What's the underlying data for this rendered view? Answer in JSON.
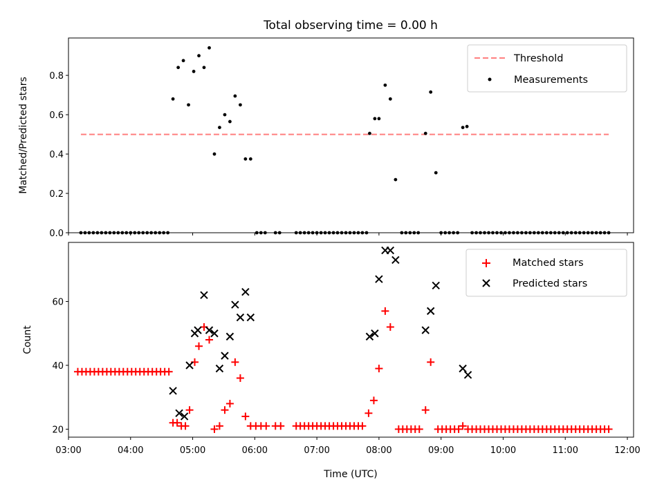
{
  "chart_data": [
    {
      "type": "scatter",
      "title": "Total observing time = 0.00 h",
      "xlabel": "",
      "ylabel": "Matched/Predicted stars",
      "xlim": [
        3.0,
        12.1
      ],
      "ylim": [
        0.0,
        0.99
      ],
      "yticks": [
        0.0,
        0.2,
        0.4,
        0.6,
        0.8
      ],
      "ytick_labels": [
        "0.0",
        "0.2",
        "0.4",
        "0.6",
        "0.8"
      ],
      "grid": false,
      "legend_position": "top-right",
      "threshold": {
        "name": "Threshold",
        "value": 0.5,
        "x_start": 3.2,
        "x_end": 11.7,
        "color": "#ff7f7f",
        "style": "dashed"
      },
      "series": [
        {
          "name": "Measurements",
          "color": "#000000",
          "marker": "dot",
          "points": [
            [
              3.2,
              0
            ],
            [
              3.267,
              0
            ],
            [
              3.333,
              0
            ],
            [
              3.4,
              0
            ],
            [
              3.467,
              0
            ],
            [
              3.533,
              0
            ],
            [
              3.6,
              0
            ],
            [
              3.667,
              0
            ],
            [
              3.733,
              0
            ],
            [
              3.8,
              0
            ],
            [
              3.867,
              0
            ],
            [
              3.933,
              0
            ],
            [
              4.0,
              0
            ],
            [
              4.067,
              0
            ],
            [
              4.133,
              0
            ],
            [
              4.2,
              0
            ],
            [
              4.267,
              0
            ],
            [
              4.333,
              0
            ],
            [
              4.4,
              0
            ],
            [
              4.467,
              0
            ],
            [
              4.533,
              0
            ],
            [
              4.6,
              0
            ],
            [
              4.683,
              0.68
            ],
            [
              4.767,
              0.84
            ],
            [
              4.85,
              0.875
            ],
            [
              4.933,
              0.65
            ],
            [
              5.017,
              0.82
            ],
            [
              5.1,
              0.9
            ],
            [
              5.183,
              0.84
            ],
            [
              5.267,
              0.94
            ],
            [
              5.35,
              0.4
            ],
            [
              5.433,
              0.535
            ],
            [
              5.517,
              0.6
            ],
            [
              5.6,
              0.565
            ],
            [
              5.683,
              0.695
            ],
            [
              5.767,
              0.65
            ],
            [
              5.85,
              0.375
            ],
            [
              5.933,
              0.375
            ],
            [
              6.033,
              0
            ],
            [
              6.1,
              0
            ],
            [
              6.167,
              0
            ],
            [
              6.333,
              0
            ],
            [
              6.4,
              0
            ],
            [
              6.667,
              0
            ],
            [
              6.733,
              0
            ],
            [
              6.8,
              0
            ],
            [
              6.867,
              0
            ],
            [
              6.933,
              0
            ],
            [
              7.0,
              0
            ],
            [
              7.067,
              0
            ],
            [
              7.133,
              0
            ],
            [
              7.2,
              0
            ],
            [
              7.267,
              0
            ],
            [
              7.333,
              0
            ],
            [
              7.4,
              0
            ],
            [
              7.467,
              0
            ],
            [
              7.533,
              0
            ],
            [
              7.6,
              0
            ],
            [
              7.667,
              0
            ],
            [
              7.733,
              0
            ],
            [
              7.8,
              0
            ],
            [
              7.85,
              0.505
            ],
            [
              7.933,
              0.58
            ],
            [
              8.0,
              0.58
            ],
            [
              8.1,
              0.75
            ],
            [
              8.183,
              0.68
            ],
            [
              8.267,
              0.27
            ],
            [
              8.367,
              0
            ],
            [
              8.433,
              0
            ],
            [
              8.5,
              0
            ],
            [
              8.567,
              0
            ],
            [
              8.633,
              0
            ],
            [
              8.75,
              0.505
            ],
            [
              8.833,
              0.715
            ],
            [
              8.917,
              0.305
            ],
            [
              9.0,
              0
            ],
            [
              9.067,
              0
            ],
            [
              9.133,
              0
            ],
            [
              9.2,
              0
            ],
            [
              9.267,
              0
            ],
            [
              9.35,
              0.535
            ],
            [
              9.417,
              0.54
            ],
            [
              9.5,
              0
            ],
            [
              9.567,
              0
            ],
            [
              9.633,
              0
            ],
            [
              9.7,
              0
            ],
            [
              9.767,
              0
            ],
            [
              9.833,
              0
            ],
            [
              9.9,
              0
            ],
            [
              9.967,
              0
            ],
            [
              10.033,
              0
            ],
            [
              10.1,
              0
            ],
            [
              10.167,
              0
            ],
            [
              10.233,
              0
            ],
            [
              10.3,
              0
            ],
            [
              10.367,
              0
            ],
            [
              10.433,
              0
            ],
            [
              10.5,
              0
            ],
            [
              10.567,
              0
            ],
            [
              10.633,
              0
            ],
            [
              10.7,
              0
            ],
            [
              10.767,
              0
            ],
            [
              10.833,
              0
            ],
            [
              10.9,
              0
            ],
            [
              10.967,
              0
            ],
            [
              11.033,
              0
            ],
            [
              11.1,
              0
            ],
            [
              11.167,
              0
            ],
            [
              11.233,
              0
            ],
            [
              11.3,
              0
            ],
            [
              11.367,
              0
            ],
            [
              11.433,
              0
            ],
            [
              11.5,
              0
            ],
            [
              11.567,
              0
            ],
            [
              11.633,
              0
            ],
            [
              11.7,
              0
            ]
          ]
        }
      ]
    },
    {
      "type": "scatter",
      "title": "",
      "xlabel": "Time (UTC)",
      "ylabel": "Count",
      "xlim": [
        3.0,
        12.1
      ],
      "ylim": [
        17.5,
        78.5
      ],
      "xticks": [
        3,
        4,
        5,
        6,
        7,
        8,
        9,
        10,
        11,
        12
      ],
      "xtick_labels": [
        "03:00",
        "04:00",
        "05:00",
        "06:00",
        "07:00",
        "08:00",
        "09:00",
        "10:00",
        "11:00",
        "12:00"
      ],
      "yticks": [
        20,
        40,
        60
      ],
      "ytick_labels": [
        "20",
        "40",
        "60"
      ],
      "grid": false,
      "legend_position": "top-right",
      "series": [
        {
          "name": "Matched stars",
          "color": "#ff0000",
          "marker": "plus",
          "points": [
            [
              3.15,
              38
            ],
            [
              3.217,
              38
            ],
            [
              3.283,
              38
            ],
            [
              3.35,
              38
            ],
            [
              3.417,
              38
            ],
            [
              3.483,
              38
            ],
            [
              3.55,
              38
            ],
            [
              3.617,
              38
            ],
            [
              3.683,
              38
            ],
            [
              3.75,
              38
            ],
            [
              3.817,
              38
            ],
            [
              3.883,
              38
            ],
            [
              3.95,
              38
            ],
            [
              4.017,
              38
            ],
            [
              4.083,
              38
            ],
            [
              4.15,
              38
            ],
            [
              4.217,
              38
            ],
            [
              4.283,
              38
            ],
            [
              4.35,
              38
            ],
            [
              4.417,
              38
            ],
            [
              4.483,
              38
            ],
            [
              4.55,
              38
            ],
            [
              4.617,
              38
            ],
            [
              4.683,
              22
            ],
            [
              4.75,
              22
            ],
            [
              4.817,
              21
            ],
            [
              4.883,
              21
            ],
            [
              4.95,
              26
            ],
            [
              5.033,
              41
            ],
            [
              5.1,
              46
            ],
            [
              5.183,
              52
            ],
            [
              5.267,
              48
            ],
            [
              5.35,
              20
            ],
            [
              5.433,
              21
            ],
            [
              5.517,
              26
            ],
            [
              5.6,
              28
            ],
            [
              5.683,
              41
            ],
            [
              5.767,
              36
            ],
            [
              5.85,
              24
            ],
            [
              5.933,
              21
            ],
            [
              6.017,
              21
            ],
            [
              6.1,
              21
            ],
            [
              6.183,
              21
            ],
            [
              6.333,
              21
            ],
            [
              6.417,
              21
            ],
            [
              6.667,
              21
            ],
            [
              6.733,
              21
            ],
            [
              6.8,
              21
            ],
            [
              6.867,
              21
            ],
            [
              6.933,
              21
            ],
            [
              7.0,
              21
            ],
            [
              7.067,
              21
            ],
            [
              7.133,
              21
            ],
            [
              7.2,
              21
            ],
            [
              7.267,
              21
            ],
            [
              7.333,
              21
            ],
            [
              7.4,
              21
            ],
            [
              7.467,
              21
            ],
            [
              7.533,
              21
            ],
            [
              7.6,
              21
            ],
            [
              7.667,
              21
            ],
            [
              7.733,
              21
            ],
            [
              7.833,
              25
            ],
            [
              7.917,
              29
            ],
            [
              8.0,
              39
            ],
            [
              8.1,
              57
            ],
            [
              8.183,
              52
            ],
            [
              8.317,
              20
            ],
            [
              8.383,
              20
            ],
            [
              8.45,
              20
            ],
            [
              8.517,
              20
            ],
            [
              8.583,
              20
            ],
            [
              8.65,
              20
            ],
            [
              8.75,
              26
            ],
            [
              8.833,
              41
            ],
            [
              8.95,
              20
            ],
            [
              9.017,
              20
            ],
            [
              9.083,
              20
            ],
            [
              9.15,
              20
            ],
            [
              9.217,
              20
            ],
            [
              9.283,
              20
            ],
            [
              9.35,
              21
            ],
            [
              9.433,
              20
            ],
            [
              9.5,
              20
            ],
            [
              9.567,
              20
            ],
            [
              9.633,
              20
            ],
            [
              9.7,
              20
            ],
            [
              9.767,
              20
            ],
            [
              9.833,
              20
            ],
            [
              9.9,
              20
            ],
            [
              9.967,
              20
            ],
            [
              10.033,
              20
            ],
            [
              10.1,
              20
            ],
            [
              10.167,
              20
            ],
            [
              10.233,
              20
            ],
            [
              10.3,
              20
            ],
            [
              10.367,
              20
            ],
            [
              10.433,
              20
            ],
            [
              10.5,
              20
            ],
            [
              10.567,
              20
            ],
            [
              10.633,
              20
            ],
            [
              10.7,
              20
            ],
            [
              10.767,
              20
            ],
            [
              10.833,
              20
            ],
            [
              10.9,
              20
            ],
            [
              10.967,
              20
            ],
            [
              11.033,
              20
            ],
            [
              11.1,
              20
            ],
            [
              11.167,
              20
            ],
            [
              11.233,
              20
            ],
            [
              11.3,
              20
            ],
            [
              11.367,
              20
            ],
            [
              11.433,
              20
            ],
            [
              11.5,
              20
            ],
            [
              11.567,
              20
            ],
            [
              11.633,
              20
            ],
            [
              11.7,
              20
            ]
          ]
        },
        {
          "name": "Predicted stars",
          "color": "#000000",
          "marker": "x",
          "points": [
            [
              4.683,
              32
            ],
            [
              4.783,
              25
            ],
            [
              4.867,
              24
            ],
            [
              4.95,
              40
            ],
            [
              5.033,
              50
            ],
            [
              5.083,
              51
            ],
            [
              5.183,
              62
            ],
            [
              5.267,
              51
            ],
            [
              5.35,
              50
            ],
            [
              5.433,
              39
            ],
            [
              5.517,
              43
            ],
            [
              5.6,
              49
            ],
            [
              5.683,
              59
            ],
            [
              5.767,
              55
            ],
            [
              5.85,
              63
            ],
            [
              5.933,
              55
            ],
            [
              7.85,
              49
            ],
            [
              7.933,
              50
            ],
            [
              8.0,
              67
            ],
            [
              8.1,
              76
            ],
            [
              8.183,
              76
            ],
            [
              8.267,
              73
            ],
            [
              8.75,
              51
            ],
            [
              8.833,
              57
            ],
            [
              8.917,
              65
            ],
            [
              9.35,
              39
            ],
            [
              9.433,
              37
            ]
          ]
        }
      ]
    }
  ]
}
